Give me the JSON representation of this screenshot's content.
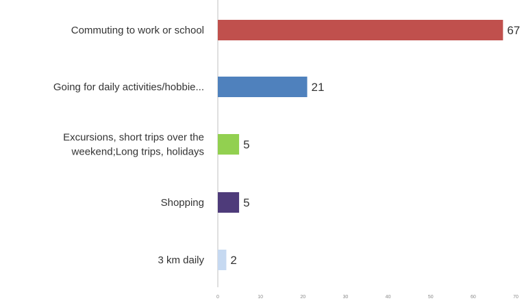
{
  "chart_data": {
    "type": "bar",
    "orientation": "horizontal",
    "categories": [
      [
        "Commuting to work or school"
      ],
      [
        "Going for daily activities/hobbie..."
      ],
      [
        "Excursions, short trips over the",
        "weekend;Long trips, holidays"
      ],
      [
        "Shopping"
      ],
      [
        "3 km daily"
      ]
    ],
    "values": [
      67,
      21,
      5,
      5,
      2
    ],
    "value_labels": [
      "67",
      "21",
      "5",
      "5",
      "2"
    ],
    "colors": [
      "#c0504d",
      "#4f81bd",
      "#92d050",
      "#4e3b7a",
      "#c6d9f1"
    ],
    "xlim": [
      0,
      70
    ],
    "ticks": [
      0,
      10,
      20,
      30,
      40,
      50,
      60,
      70
    ],
    "tick_labels": [
      "0",
      "10",
      "20",
      "30",
      "40",
      "50",
      "60",
      "70"
    ],
    "grid": false,
    "title": "",
    "xlabel": "",
    "ylabel": ""
  }
}
